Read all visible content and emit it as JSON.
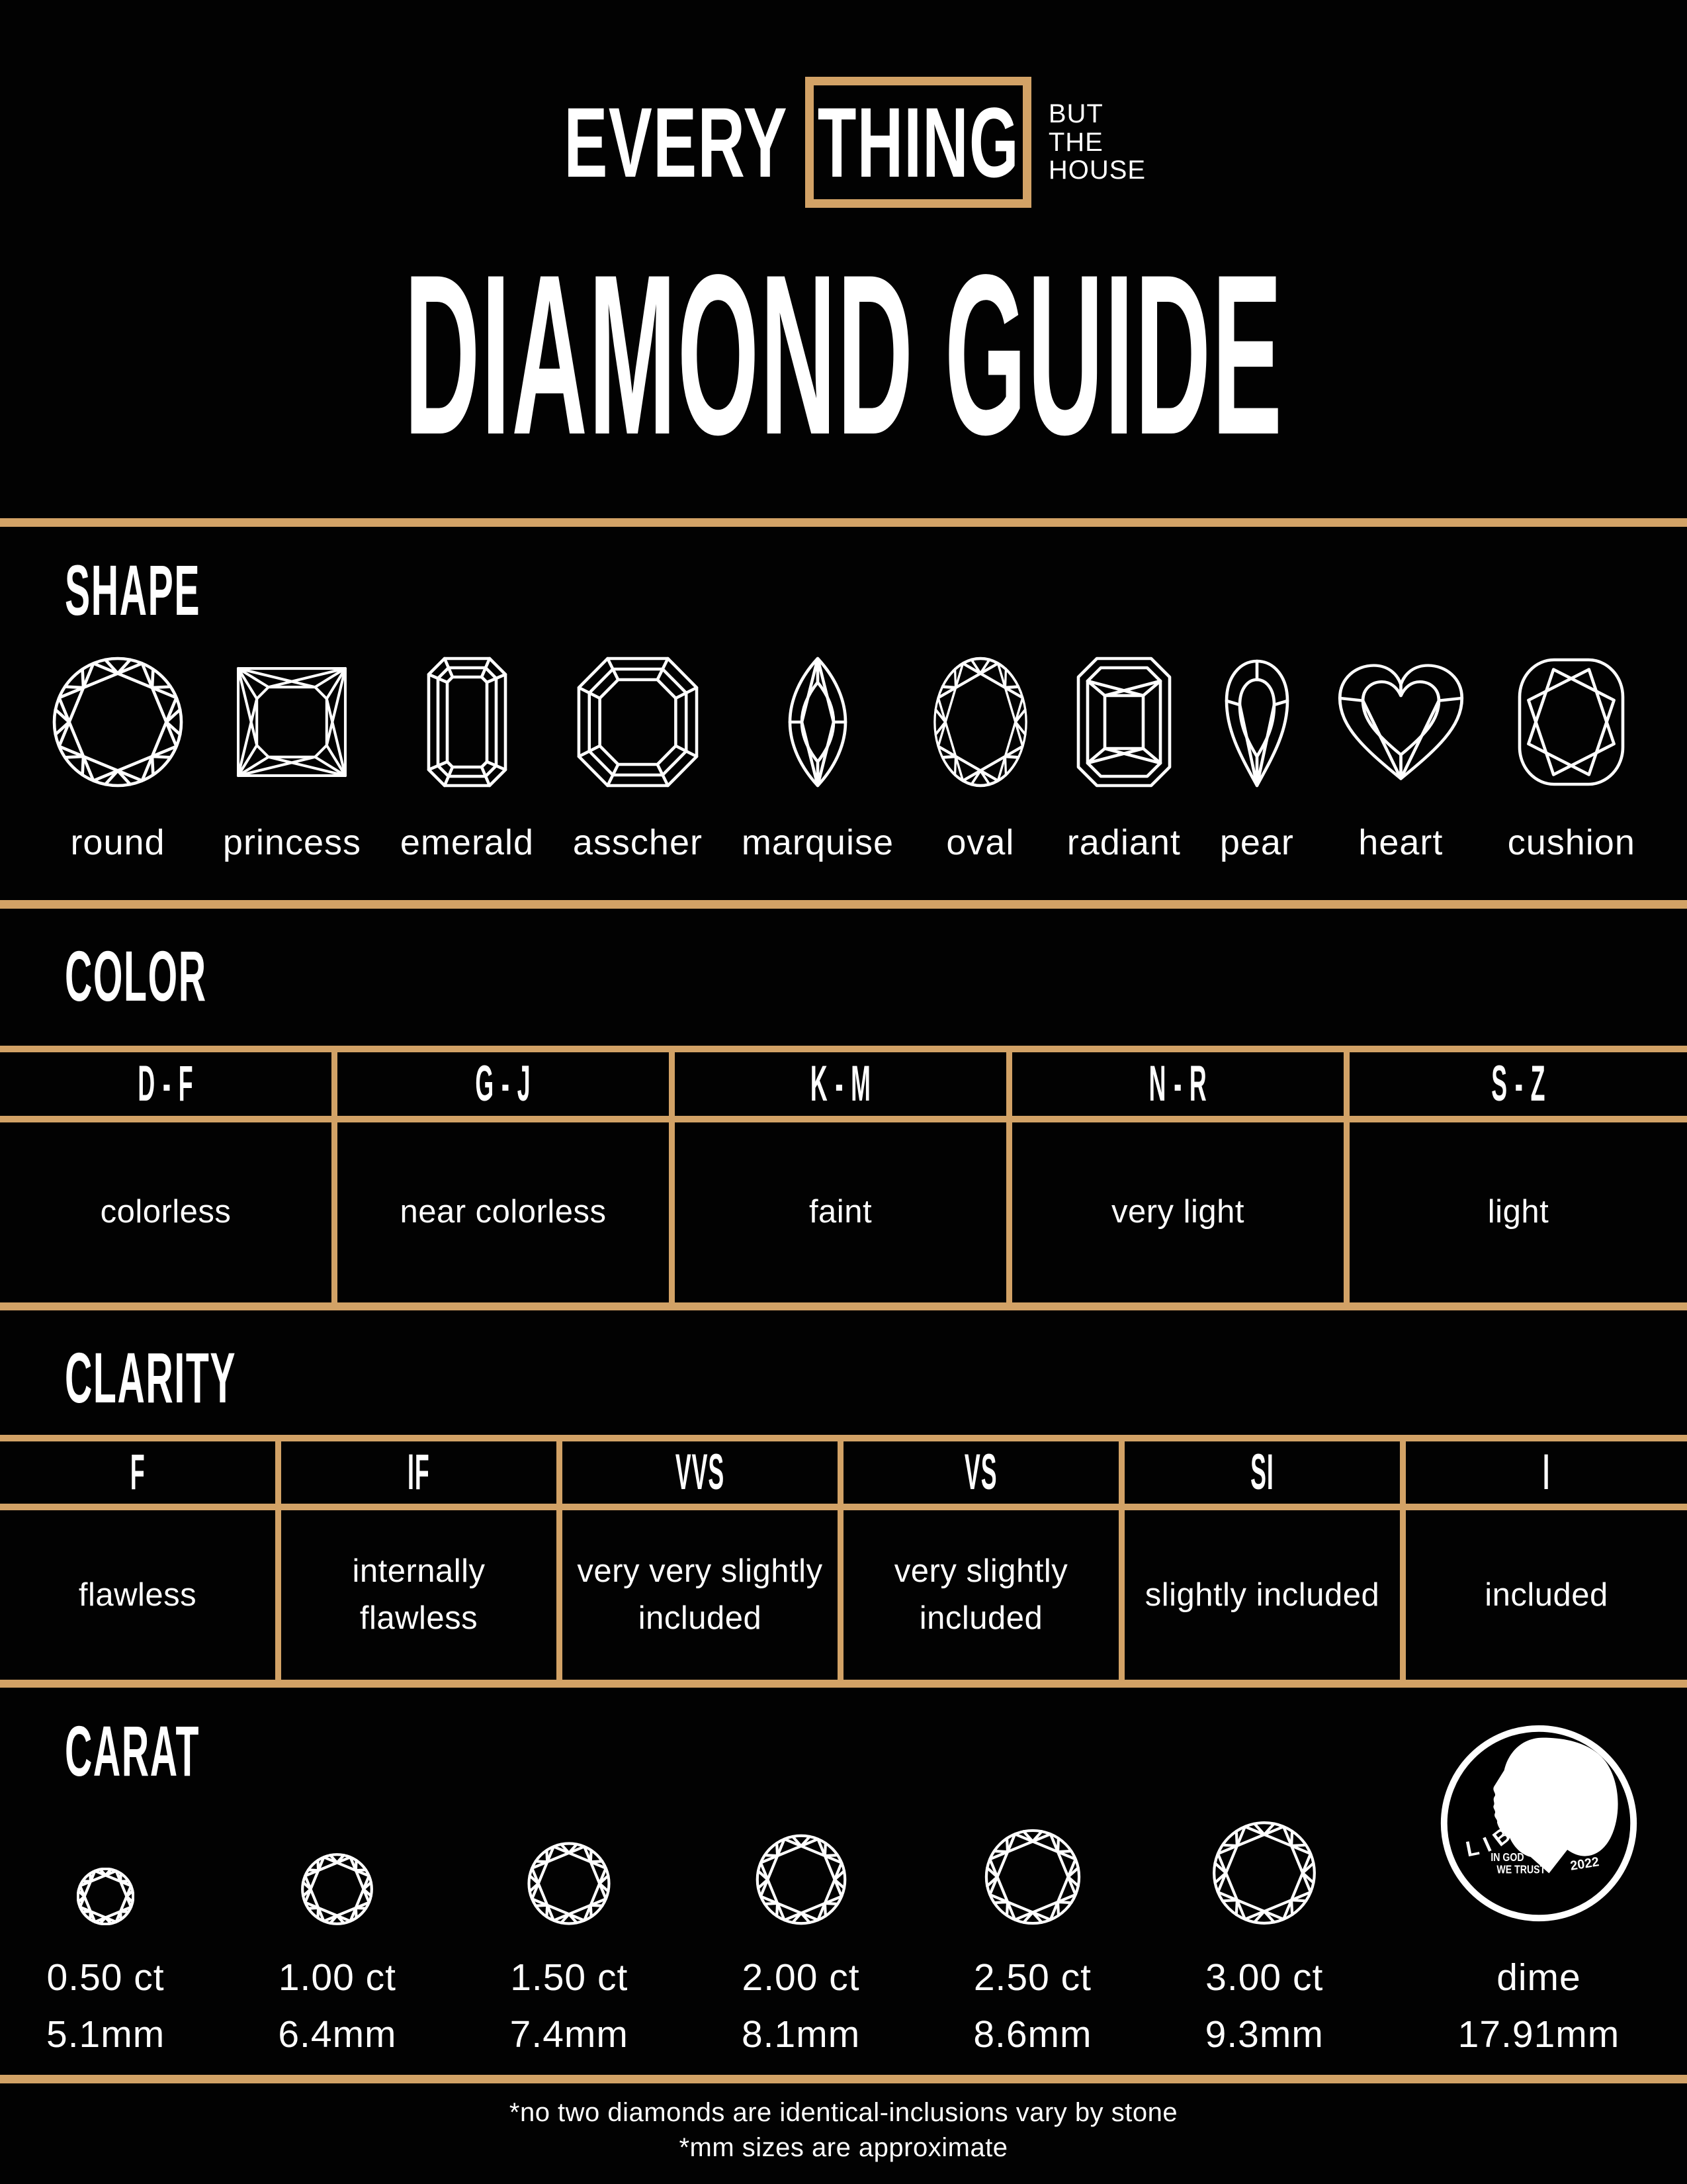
{
  "brand": {
    "word_outside": "EVERY",
    "word_boxed": "THING",
    "tagline_lines": [
      "BUT",
      "THE",
      "HOUSE"
    ]
  },
  "title": "DIAMOND GUIDE",
  "sections": {
    "shape": {
      "heading": "SHAPE",
      "items": [
        "round",
        "princess",
        "emerald",
        "asscher",
        "marquise",
        "oval",
        "radiant",
        "pear",
        "heart",
        "cushion"
      ]
    },
    "color": {
      "heading": "COLOR",
      "columns": [
        {
          "grade": "D - F",
          "label": "colorless"
        },
        {
          "grade": "G - J",
          "label": "near colorless"
        },
        {
          "grade": "K - M",
          "label": "faint"
        },
        {
          "grade": "N - R",
          "label": "very light"
        },
        {
          "grade": "S - Z",
          "label": "light"
        }
      ]
    },
    "clarity": {
      "heading": "CLARITY",
      "columns": [
        {
          "grade": "F",
          "label": "flawless"
        },
        {
          "grade": "IF",
          "label": "internally flawless"
        },
        {
          "grade": "VVS",
          "label": "very very slightly included"
        },
        {
          "grade": "VS",
          "label": "very slightly included"
        },
        {
          "grade": "SI",
          "label": "slightly included"
        },
        {
          "grade": "I",
          "label": "included"
        }
      ]
    },
    "carat": {
      "heading": "CARAT",
      "items": [
        {
          "ct": "0.50 ct",
          "mm": "5.1mm",
          "mm_value": 5.1
        },
        {
          "ct": "1.00 ct",
          "mm": "6.4mm",
          "mm_value": 6.4
        },
        {
          "ct": "1.50 ct",
          "mm": "7.4mm",
          "mm_value": 7.4
        },
        {
          "ct": "2.00 ct",
          "mm": "8.1mm",
          "mm_value": 8.1
        },
        {
          "ct": "2.50 ct",
          "mm": "8.6mm",
          "mm_value": 8.6
        },
        {
          "ct": "3.00 ct",
          "mm": "9.3mm",
          "mm_value": 9.3
        }
      ],
      "dime": {
        "label": "dime",
        "mm": "17.91mm",
        "mm_value": 17.91,
        "coin": {
          "liberty": "LIBERTY",
          "motto_line1": "IN GOD",
          "motto_line2": "WE TRUST",
          "year": "2022"
        }
      }
    }
  },
  "footnotes": [
    "*no two diamonds are identical-inclusions vary by stone",
    "*mm sizes are approximate"
  ],
  "colors": {
    "background": "#020202",
    "gold": "#D2A266",
    "text": "#FFFFFF"
  }
}
